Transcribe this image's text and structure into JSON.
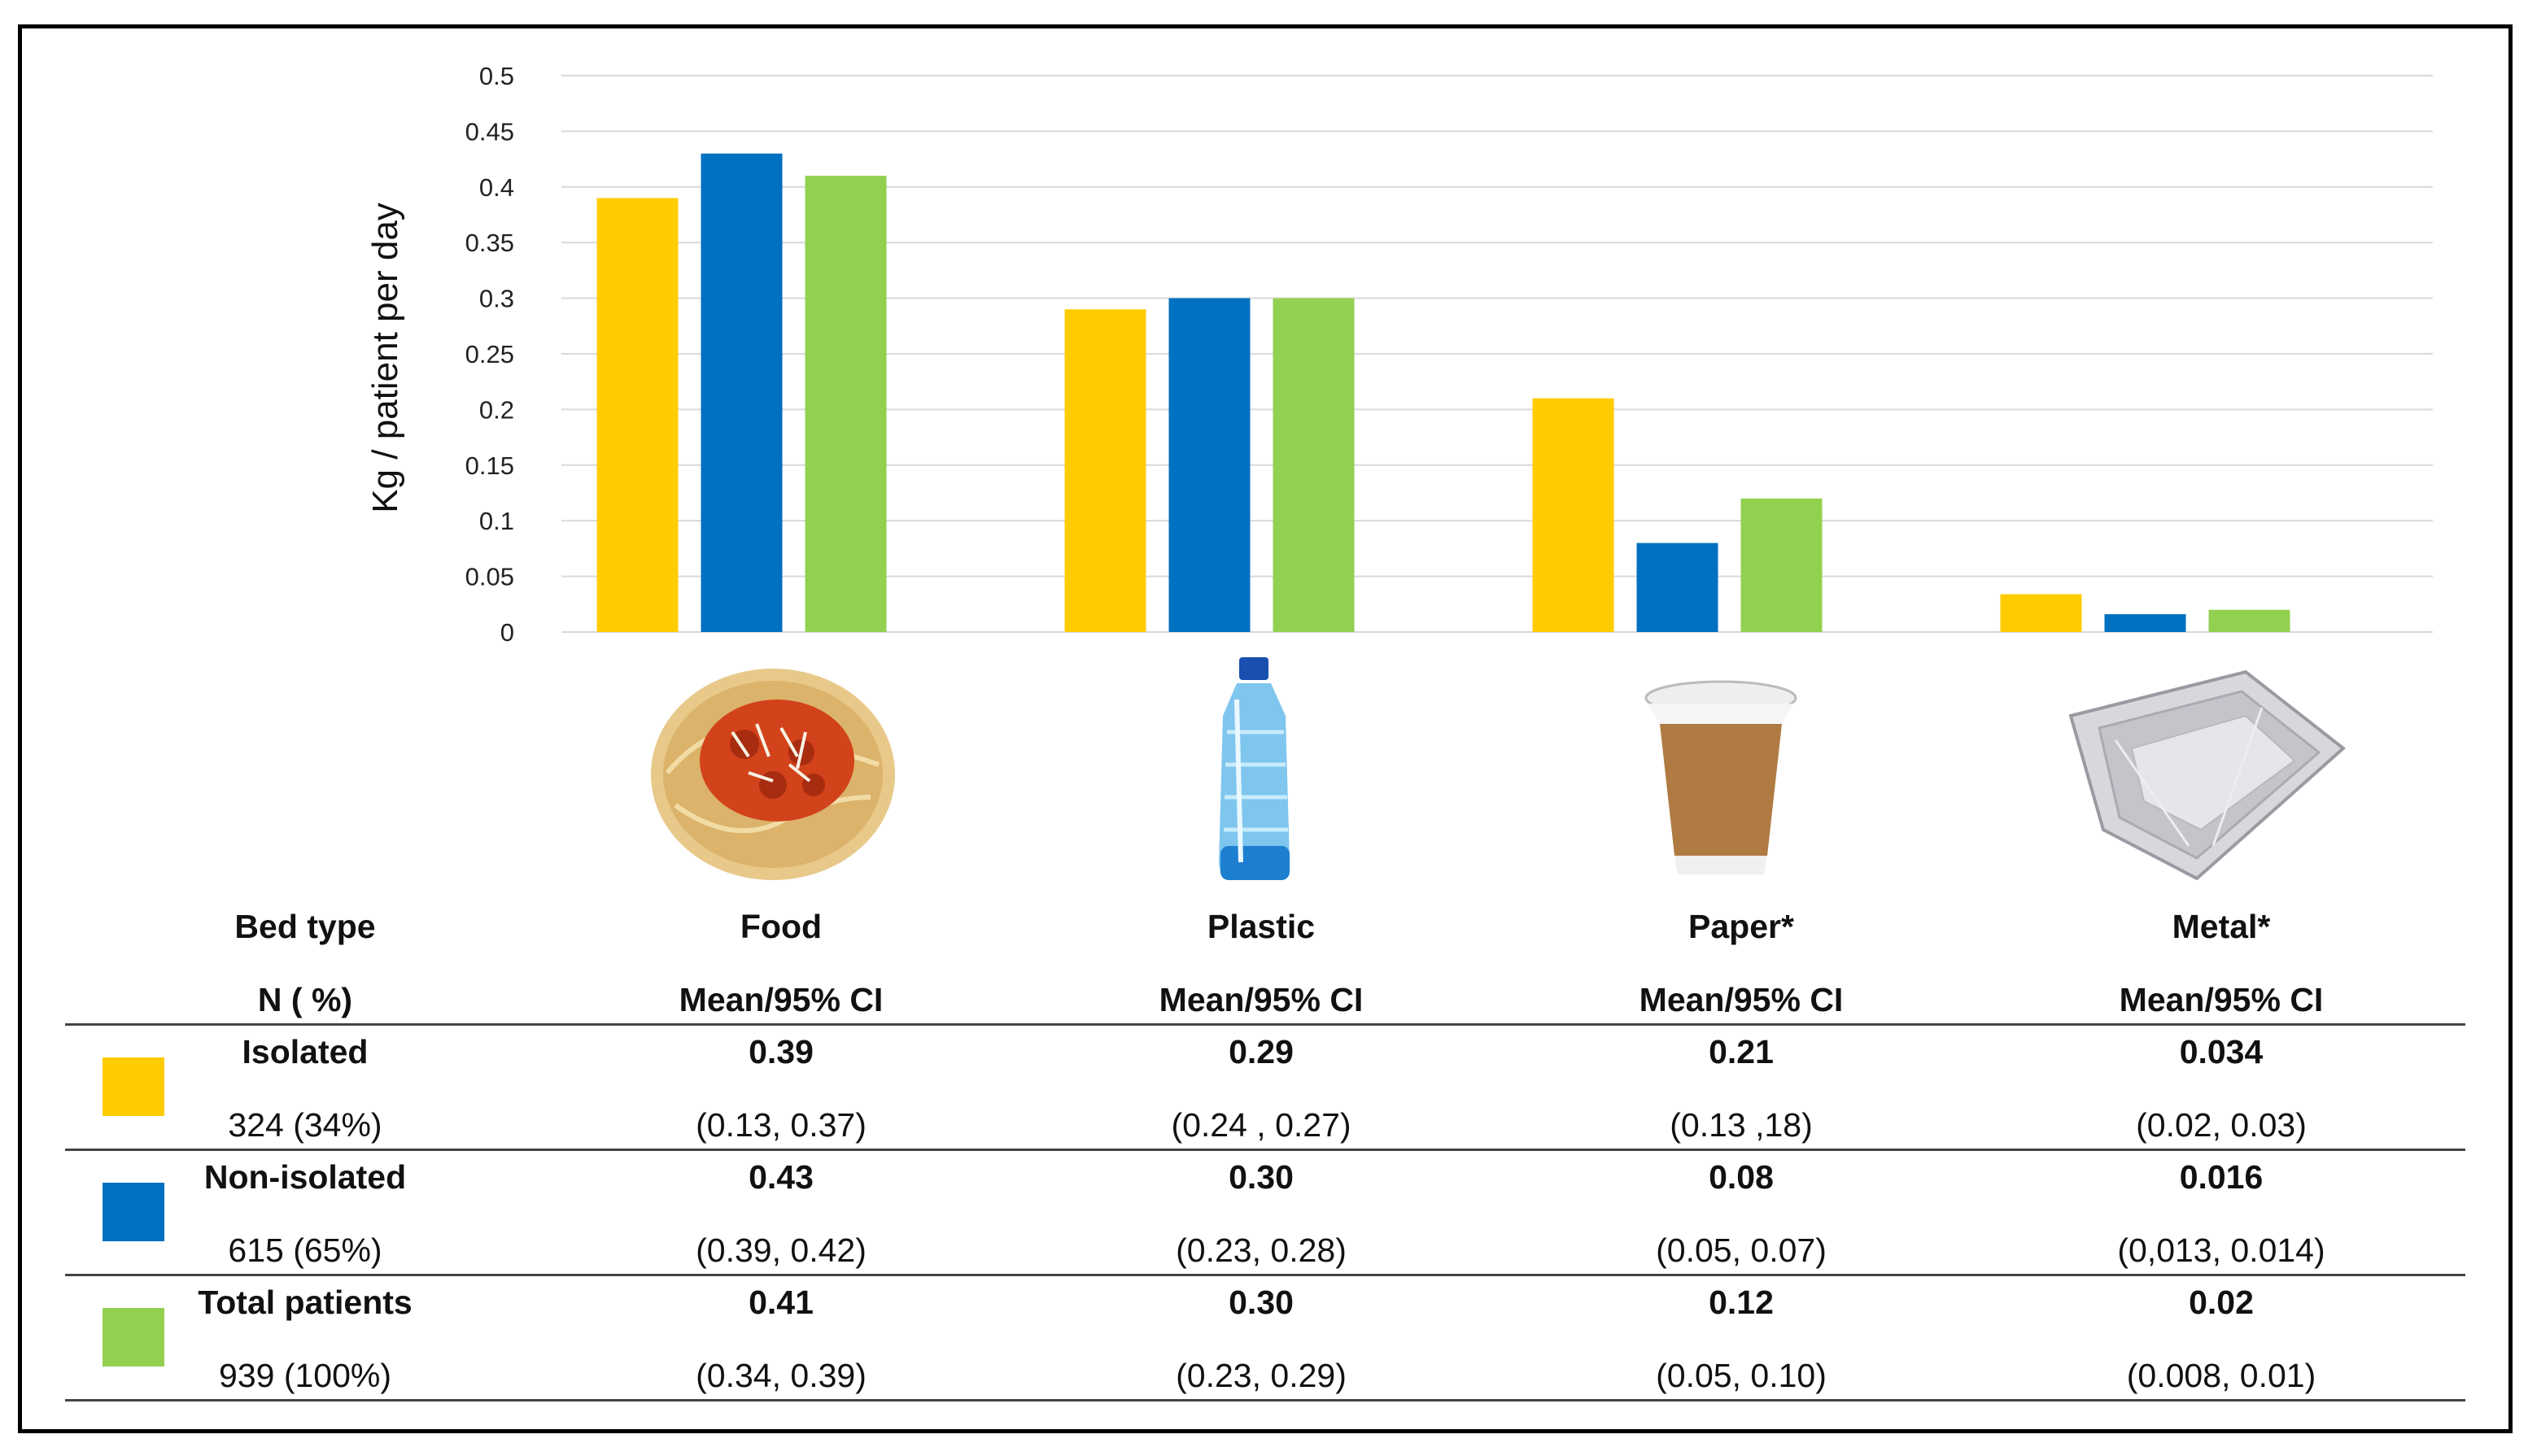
{
  "chart_data": {
    "type": "bar",
    "title": "",
    "xlabel": "",
    "ylabel": "Kg / patient per day",
    "ylim": [
      0,
      0.5
    ],
    "yticks": [
      "0",
      "0.05",
      "0.1",
      "0.15",
      "0.2",
      "0.25",
      "0.3",
      "0.35",
      "0.4",
      "0.45",
      "0.5"
    ],
    "grid": true,
    "categories": [
      "Food",
      "Plastic",
      "Paper*",
      "Metal*"
    ],
    "series": [
      {
        "name": "Isolated",
        "color": "#FFCC00",
        "values": [
          0.39,
          0.29,
          0.21,
          0.034
        ]
      },
      {
        "name": "Non-isolated",
        "color": "#0070C0",
        "values": [
          0.43,
          0.3,
          0.08,
          0.016
        ]
      },
      {
        "name": "Total patients",
        "color": "#92D050",
        "values": [
          0.41,
          0.3,
          0.12,
          0.02
        ]
      }
    ],
    "category_icons": [
      "spaghetti-icon",
      "water-bottle-icon",
      "paper-cup-icon",
      "foil-tray-icon"
    ]
  },
  "table": {
    "header_row1": [
      "Bed type",
      "Food",
      "Plastic",
      "Paper*",
      "Metal*"
    ],
    "header_row2": [
      "N ( %)",
      "Mean/95% CI",
      "Mean/95% CI",
      "Mean/95% CI",
      "Mean/95% CI"
    ],
    "rows": [
      {
        "label": "Isolated",
        "n": "324 (34%)",
        "color": "#FFCC00",
        "means": [
          "0.39",
          "0.29",
          "0.21",
          "0.034"
        ],
        "cis": [
          "(0.13, 0.37)",
          "(0.24 , 0.27)",
          "(0.13 ,18)",
          "(0.02, 0.03)"
        ]
      },
      {
        "label": "Non-isolated",
        "n": "615 (65%)",
        "color": "#0070C0",
        "means": [
          "0.43",
          "0.30",
          "0.08",
          "0.016"
        ],
        "cis": [
          "(0.39, 0.42)",
          "(0.23, 0.28)",
          "(0.05, 0.07)",
          "(0,013, 0.014)"
        ]
      },
      {
        "label": "Total patients",
        "n": "939 (100%)",
        "color": "#92D050",
        "means": [
          "0.41",
          "0.30",
          "0.12",
          "0.02"
        ],
        "cis": [
          "(0.34, 0.39)",
          "(0.23, 0.29)",
          "(0.05, 0.10)",
          "(0.008, 0.01)"
        ]
      }
    ]
  }
}
